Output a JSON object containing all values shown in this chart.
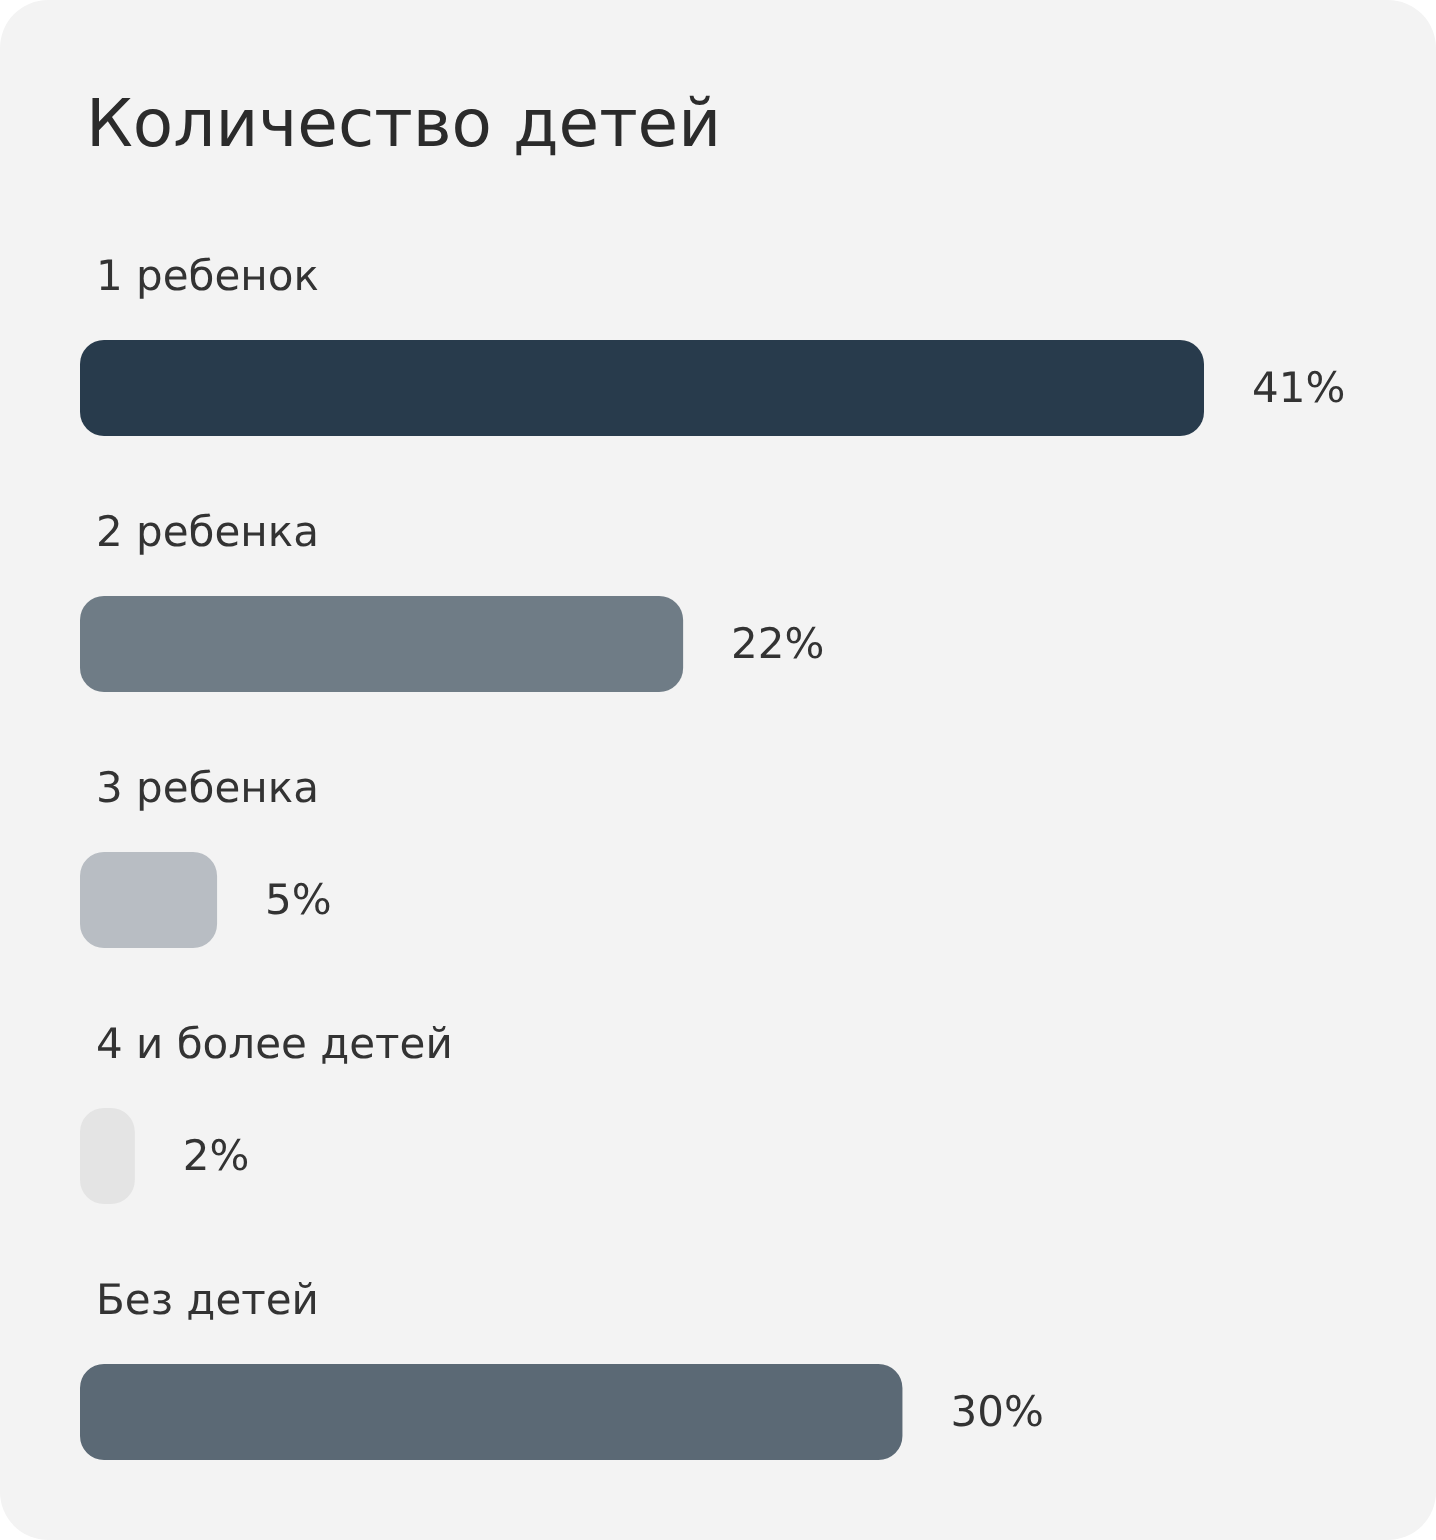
{
  "chart_data": {
    "type": "bar",
    "orientation": "horizontal",
    "title": "Количество детей",
    "categories": [
      "1 ребенок",
      "2 ребенка",
      "3 ребенка",
      "4 и более детей",
      "Без детей"
    ],
    "values": [
      41,
      22,
      5,
      2,
      30
    ],
    "colors": [
      "#283b4c",
      "#6f7c86",
      "#b8bdc3",
      "#e4e4e4",
      "#5b6975"
    ],
    "value_labels": [
      "41%",
      "22%",
      "5%",
      "2%",
      "30%"
    ]
  }
}
